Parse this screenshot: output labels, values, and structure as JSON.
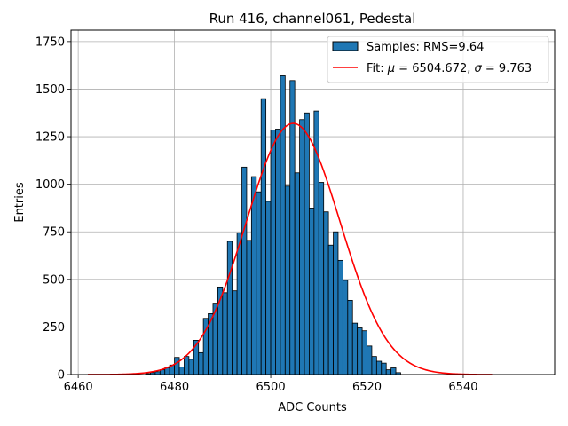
{
  "chart_data": {
    "type": "bar",
    "title": "Run 416, channel061, Pedestal",
    "xlabel": "ADC Counts",
    "ylabel": "Entries",
    "xlim": [
      6458.5,
      6559
    ],
    "ylim": [
      0,
      1810
    ],
    "xticks": [
      6460,
      6480,
      6500,
      6520,
      6540
    ],
    "yticks": [
      0,
      250,
      500,
      750,
      1000,
      1250,
      1500,
      1750
    ],
    "grid": true,
    "legend_position": "top-right",
    "legend": {
      "samples_label": "Samples: RMS=9.64",
      "fit_label_prefix": "Fit: ",
      "mu_symbol": "μ",
      "fit_label_middle": " = 6504.672, ",
      "sigma_symbol": "σ",
      "fit_label_suffix": " = 9.763"
    },
    "bar_color": "#1f77b4",
    "fit_color": "#ff0000",
    "series": [
      {
        "type": "histogram",
        "bin_width": 1,
        "bins": [
          {
            "x": 6474,
            "y": 5
          },
          {
            "x": 6475,
            "y": 10
          },
          {
            "x": 6476,
            "y": 15
          },
          {
            "x": 6477,
            "y": 25
          },
          {
            "x": 6478,
            "y": 35
          },
          {
            "x": 6479,
            "y": 50
          },
          {
            "x": 6480,
            "y": 90
          },
          {
            "x": 6481,
            "y": 40
          },
          {
            "x": 6482,
            "y": 95
          },
          {
            "x": 6483,
            "y": 80
          },
          {
            "x": 6484,
            "y": 180
          },
          {
            "x": 6485,
            "y": 115
          },
          {
            "x": 6486,
            "y": 295
          },
          {
            "x": 6487,
            "y": 320
          },
          {
            "x": 6488,
            "y": 375
          },
          {
            "x": 6489,
            "y": 460
          },
          {
            "x": 6490,
            "y": 430
          },
          {
            "x": 6491,
            "y": 700
          },
          {
            "x": 6492,
            "y": 440
          },
          {
            "x": 6493,
            "y": 745
          },
          {
            "x": 6494,
            "y": 1090
          },
          {
            "x": 6495,
            "y": 705
          },
          {
            "x": 6496,
            "y": 1040
          },
          {
            "x": 6497,
            "y": 960
          },
          {
            "x": 6498,
            "y": 1450
          },
          {
            "x": 6499,
            "y": 910
          },
          {
            "x": 6500,
            "y": 1285
          },
          {
            "x": 6501,
            "y": 1290
          },
          {
            "x": 6502,
            "y": 1570
          },
          {
            "x": 6503,
            "y": 990
          },
          {
            "x": 6504,
            "y": 1545
          },
          {
            "x": 6505,
            "y": 1060
          },
          {
            "x": 6506,
            "y": 1340
          },
          {
            "x": 6507,
            "y": 1375
          },
          {
            "x": 6508,
            "y": 875
          },
          {
            "x": 6509,
            "y": 1385
          },
          {
            "x": 6510,
            "y": 1010
          },
          {
            "x": 6511,
            "y": 855
          },
          {
            "x": 6512,
            "y": 680
          },
          {
            "x": 6513,
            "y": 750
          },
          {
            "x": 6514,
            "y": 600
          },
          {
            "x": 6515,
            "y": 495
          },
          {
            "x": 6516,
            "y": 390
          },
          {
            "x": 6517,
            "y": 270
          },
          {
            "x": 6518,
            "y": 245
          },
          {
            "x": 6519,
            "y": 230
          },
          {
            "x": 6520,
            "y": 150
          },
          {
            "x": 6521,
            "y": 95
          },
          {
            "x": 6522,
            "y": 70
          },
          {
            "x": 6523,
            "y": 60
          },
          {
            "x": 6524,
            "y": 25
          },
          {
            "x": 6525,
            "y": 35
          },
          {
            "x": 6526,
            "y": 10
          }
        ]
      },
      {
        "type": "gaussian_fit",
        "mu": 6504.672,
        "sigma": 9.763,
        "peak": 1320,
        "x_range": [
          6462,
          6546
        ]
      }
    ]
  }
}
